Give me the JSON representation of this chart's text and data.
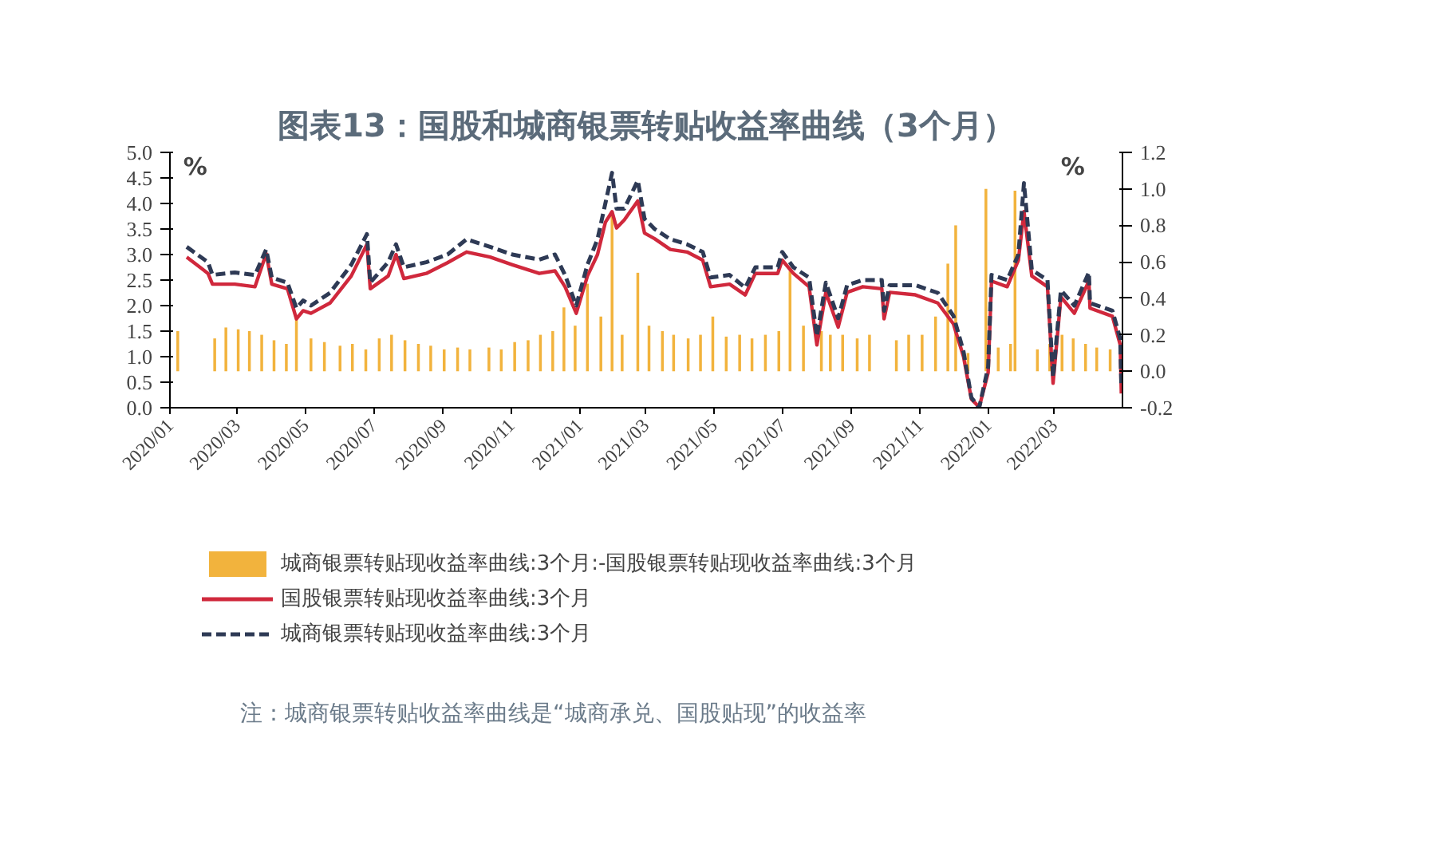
{
  "chart_data": {
    "type": "line",
    "title": "图表13：国股和城商银票转贴收益率曲线（3个月）",
    "ylabel": "%",
    "y2label": "%",
    "annotations": [
      "注：城商银票转贴收益率曲线是“城商承兑、国股贴现”的收益率"
    ],
    "x": [
      "2020-01-16",
      "2020-02-04",
      "2020-02-08",
      "2020-02-28",
      "2020-03-17",
      "2020-03-27",
      "2020-04-01",
      "2020-04-15",
      "2020-04-23",
      "2020-04-29",
      "2020-05-06",
      "2020-05-23",
      "2020-06-11",
      "2020-06-25",
      "2020-06-28",
      "2020-07-14",
      "2020-07-21",
      "2020-07-28",
      "2020-08-17",
      "2020-09-05",
      "2020-09-22",
      "2020-10-13",
      "2020-11-02",
      "2020-11-26",
      "2020-12-10",
      "2020-12-19",
      "2020-12-29",
      "2021-01-08",
      "2021-01-17",
      "2021-01-24",
      "2021-01-30",
      "2021-02-03",
      "2021-02-10",
      "2021-02-22",
      "2021-02-28",
      "2021-03-09",
      "2021-03-23",
      "2021-04-07",
      "2021-04-21",
      "2021-04-28",
      "2021-05-15",
      "2021-05-29",
      "2021-06-07",
      "2021-06-27",
      "2021-07-01",
      "2021-07-11",
      "2021-07-25",
      "2021-08-01",
      "2021-08-09",
      "2021-08-20",
      "2021-08-28",
      "2021-09-11",
      "2021-09-28",
      "2021-09-30",
      "2021-10-05",
      "2021-10-28",
      "2021-11-17",
      "2021-12-01",
      "2021-12-10",
      "2021-12-17",
      "2021-12-24",
      "2022-01-01",
      "2022-01-04",
      "2022-01-18",
      "2022-01-28",
      "2022-02-02",
      "2022-02-09",
      "2022-02-23",
      "2022-02-28",
      "2022-03-07",
      "2022-03-19",
      "2022-04-01",
      "2022-04-02",
      "2022-04-22",
      "2022-04-29",
      "2022-04-30"
    ],
    "series": [
      {
        "name": "城商银票转贴现收益率曲线:3个月:-国股银票转贴现收益率曲线:3个月",
        "type": "bar",
        "axis": "y2",
        "color": "#f2b33d",
        "x": [
          "2020-01-08",
          "2020-02-10",
          "2020-02-20",
          "2020-03-02",
          "2020-03-12",
          "2020-03-23",
          "2020-04-03",
          "2020-04-14",
          "2020-04-23",
          "2020-05-06",
          "2020-05-18",
          "2020-06-01",
          "2020-06-12",
          "2020-06-24",
          "2020-07-06",
          "2020-07-17",
          "2020-07-29",
          "2020-08-10",
          "2020-08-21",
          "2020-09-02",
          "2020-09-14",
          "2020-09-25",
          "2020-10-12",
          "2020-10-23",
          "2020-11-04",
          "2020-11-16",
          "2020-11-27",
          "2020-12-08",
          "2020-12-18",
          "2020-12-28",
          "2021-01-08",
          "2021-01-20",
          "2021-01-30",
          "2021-02-08",
          "2021-02-22",
          "2021-03-04",
          "2021-03-16",
          "2021-03-26",
          "2021-04-08",
          "2021-04-19",
          "2021-04-30",
          "2021-05-12",
          "2021-05-24",
          "2021-06-04",
          "2021-06-16",
          "2021-06-28",
          "2021-07-08",
          "2021-07-20",
          "2021-08-05",
          "2021-08-13",
          "2021-08-24",
          "2021-09-06",
          "2021-09-17",
          "2021-10-11",
          "2021-10-22",
          "2021-11-03",
          "2021-11-15",
          "2021-11-26",
          "2021-12-03",
          "2021-12-14",
          "2021-12-30",
          "2022-01-10",
          "2022-01-21",
          "2022-01-25",
          "2022-02-14",
          "2022-02-25",
          "2022-03-08",
          "2022-03-18",
          "2022-03-29",
          "2022-04-08",
          "2022-04-20"
        ],
        "values": [
          0.22,
          0.18,
          0.24,
          0.23,
          0.22,
          0.2,
          0.17,
          0.15,
          0.3,
          0.18,
          0.16,
          0.14,
          0.15,
          0.12,
          0.18,
          0.2,
          0.17,
          0.15,
          0.14,
          0.12,
          0.13,
          0.12,
          0.13,
          0.12,
          0.16,
          0.17,
          0.2,
          0.22,
          0.35,
          0.25,
          0.48,
          0.3,
          0.87,
          0.2,
          0.54,
          0.25,
          0.22,
          0.2,
          0.18,
          0.2,
          0.3,
          0.19,
          0.2,
          0.18,
          0.2,
          0.22,
          0.55,
          0.25,
          0.22,
          0.2,
          0.2,
          0.18,
          0.2,
          0.17,
          0.2,
          0.2,
          0.3,
          0.59,
          0.8,
          0.1,
          1.0,
          0.13,
          0.15,
          0.99,
          0.12,
          0.15,
          0.2,
          0.18,
          0.15,
          0.13,
          0.12
        ]
      },
      {
        "name": "国股银票转贴现收益率曲线:3个月",
        "line_style": "solid",
        "color": "#d0283c",
        "values": [
          2.95,
          2.63,
          2.42,
          2.42,
          2.37,
          3.02,
          2.42,
          2.33,
          1.74,
          1.9,
          1.85,
          2.05,
          2.58,
          3.2,
          2.33,
          2.58,
          3.0,
          2.53,
          2.63,
          2.84,
          3.05,
          2.95,
          2.8,
          2.63,
          2.68,
          2.37,
          1.85,
          2.58,
          3.0,
          3.63,
          3.84,
          3.52,
          3.68,
          4.05,
          3.42,
          3.31,
          3.1,
          3.05,
          2.89,
          2.37,
          2.42,
          2.21,
          2.63,
          2.63,
          2.89,
          2.63,
          2.37,
          1.23,
          2.26,
          1.58,
          2.26,
          2.37,
          2.33,
          1.74,
          2.26,
          2.21,
          2.05,
          1.64,
          1.0,
          0.17,
          0.01,
          0.69,
          2.48,
          2.37,
          2.89,
          3.84,
          2.58,
          2.37,
          0.48,
          2.17,
          1.85,
          2.48,
          1.95,
          1.79,
          1.23,
          0.28
        ]
      },
      {
        "name": "城商银票转贴现收益率曲线:3个月",
        "line_style": "dashed",
        "color": "#2e3a55",
        "values": [
          3.15,
          2.85,
          2.6,
          2.65,
          2.6,
          3.1,
          2.55,
          2.45,
          1.95,
          2.1,
          2.0,
          2.25,
          2.8,
          3.4,
          2.45,
          2.85,
          3.2,
          2.75,
          2.85,
          3.0,
          3.3,
          3.15,
          3.0,
          2.9,
          3.0,
          2.6,
          2.0,
          2.8,
          3.3,
          4.0,
          4.6,
          3.9,
          3.9,
          4.45,
          3.7,
          3.5,
          3.3,
          3.2,
          3.05,
          2.55,
          2.6,
          2.35,
          2.75,
          2.75,
          3.05,
          2.75,
          2.55,
          1.4,
          2.45,
          1.75,
          2.4,
          2.5,
          2.5,
          1.9,
          2.4,
          2.4,
          2.25,
          1.8,
          1.1,
          0.2,
          0.0,
          0.8,
          2.6,
          2.5,
          3.0,
          4.4,
          2.7,
          2.5,
          0.6,
          2.3,
          2.0,
          2.65,
          2.05,
          1.9,
          1.35,
          0.4
        ]
      }
    ],
    "xlim": [
      "2020-01-01",
      "2022-05-01"
    ],
    "xticks": [
      {
        "value": "2020-01",
        "label": "2020/01"
      },
      {
        "value": "2020-03",
        "label": "2020/03"
      },
      {
        "value": "2020-05",
        "label": "2020/05"
      },
      {
        "value": "2020-07",
        "label": "2020/07"
      },
      {
        "value": "2020-09",
        "label": "2020/09"
      },
      {
        "value": "2020-11",
        "label": "2020/11"
      },
      {
        "value": "2021-01",
        "label": "2021/01"
      },
      {
        "value": "2021-03",
        "label": "2021/03"
      },
      {
        "value": "2021-05",
        "label": "2021/05"
      },
      {
        "value": "2021-07",
        "label": "2021/07"
      },
      {
        "value": "2021-09",
        "label": "2021/09"
      },
      {
        "value": "2021-11",
        "label": "2021/11"
      },
      {
        "value": "2022-01",
        "label": "2022/01"
      },
      {
        "value": "2022-03",
        "label": "2022/03"
      }
    ],
    "ylim": [
      0,
      5
    ],
    "yticks": [
      {
        "value": 0,
        "label": "0.0"
      },
      {
        "value": 0.5,
        "label": "0.5"
      },
      {
        "value": 1,
        "label": "1.0"
      },
      {
        "value": 1.5,
        "label": "1.5"
      },
      {
        "value": 2,
        "label": "2.0"
      },
      {
        "value": 2.5,
        "label": "2.5"
      },
      {
        "value": 3,
        "label": "3.0"
      },
      {
        "value": 3.5,
        "label": "3.5"
      },
      {
        "value": 4,
        "label": "4.0"
      },
      {
        "value": 4.5,
        "label": "4.5"
      },
      {
        "value": 5,
        "label": "5.0"
      }
    ],
    "y2lim": [
      -0.2,
      1.2
    ],
    "y2ticks": [
      {
        "value": -0.2,
        "label": "-0.2"
      },
      {
        "value": 0,
        "label": "0.0"
      },
      {
        "value": 0.2,
        "label": "0.2"
      },
      {
        "value": 0.4,
        "label": "0.4"
      },
      {
        "value": 0.6,
        "label": "0.6"
      },
      {
        "value": 0.8,
        "label": "0.8"
      },
      {
        "value": 1.0,
        "label": "1.0"
      },
      {
        "value": 1.2,
        "label": "1.2"
      }
    ],
    "grid": false,
    "legend": "bottom"
  }
}
